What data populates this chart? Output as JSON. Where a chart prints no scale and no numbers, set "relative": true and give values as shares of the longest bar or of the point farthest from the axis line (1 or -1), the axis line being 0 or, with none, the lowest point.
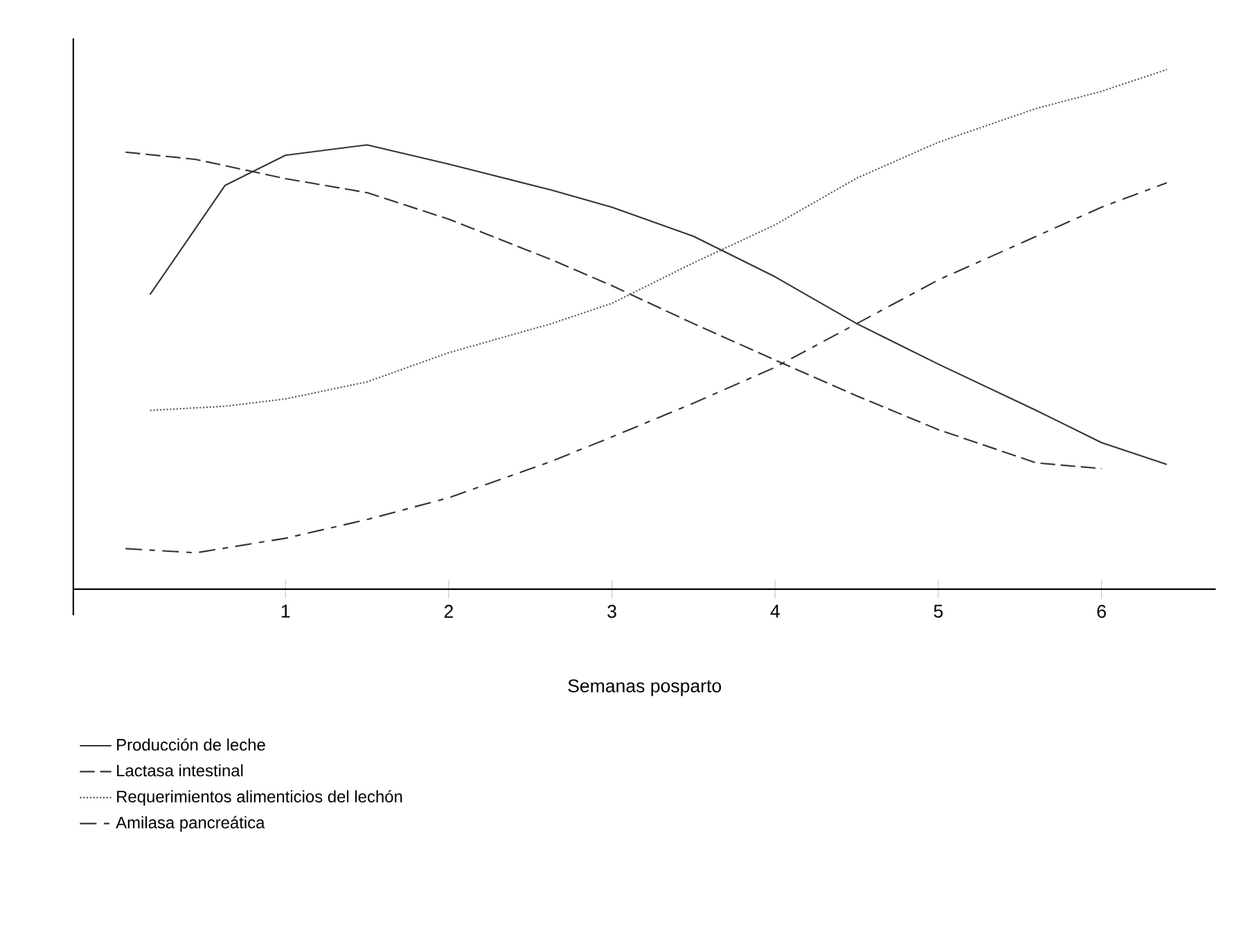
{
  "chart_data": {
    "type": "line",
    "relative": true,
    "xlabel": "Semanas posparto",
    "xlim": [
      -0.3,
      6.7
    ],
    "xticks": [
      1,
      2,
      3,
      4,
      5,
      6
    ],
    "legend": "bottom",
    "grid": false,
    "marker": "none",
    "series": [
      {
        "name": "Producción de leche",
        "color": "#333333",
        "line_style": "solid",
        "x": [
          0.17,
          0.63,
          1,
          1.5,
          2,
          2.63,
          3,
          3.5,
          4,
          4.5,
          5,
          5.6,
          6,
          6.4
        ],
        "values": [
          0.567,
          0.777,
          0.835,
          0.855,
          0.818,
          0.768,
          0.735,
          0.679,
          0.601,
          0.511,
          0.433,
          0.344,
          0.282,
          0.24
        ]
      },
      {
        "name": "Lactasa intestinal",
        "color": "#333333",
        "line_style": "dashed",
        "x": [
          0.02,
          0.45,
          1,
          1.5,
          2,
          2.63,
          3,
          3.5,
          4,
          4.5,
          5,
          5.6,
          6
        ],
        "values": [
          0.841,
          0.827,
          0.79,
          0.763,
          0.712,
          0.634,
          0.584,
          0.511,
          0.441,
          0.372,
          0.307,
          0.243,
          0.232
        ]
      },
      {
        "name": "Requerimientos alimenticios del lechón",
        "color": "#555555",
        "line_style": "dotted",
        "x": [
          0.17,
          0.63,
          1,
          1.5,
          2,
          2.63,
          3,
          3.5,
          4,
          4.5,
          5,
          5.6,
          6,
          6.4
        ],
        "values": [
          0.344,
          0.352,
          0.366,
          0.399,
          0.455,
          0.511,
          0.55,
          0.628,
          0.701,
          0.791,
          0.86,
          0.925,
          0.958,
          1
        ]
      },
      {
        "name": "Amilasa pancreática",
        "color": "#333333",
        "line_style": "dashdot",
        "x": [
          0.02,
          0.45,
          1,
          1.5,
          2,
          2.63,
          3,
          3.5,
          4,
          4.5,
          5,
          5.6,
          6,
          6.4
        ],
        "values": [
          0.078,
          0.07,
          0.098,
          0.134,
          0.176,
          0.246,
          0.293,
          0.358,
          0.427,
          0.511,
          0.595,
          0.679,
          0.735,
          0.782
        ]
      }
    ]
  }
}
